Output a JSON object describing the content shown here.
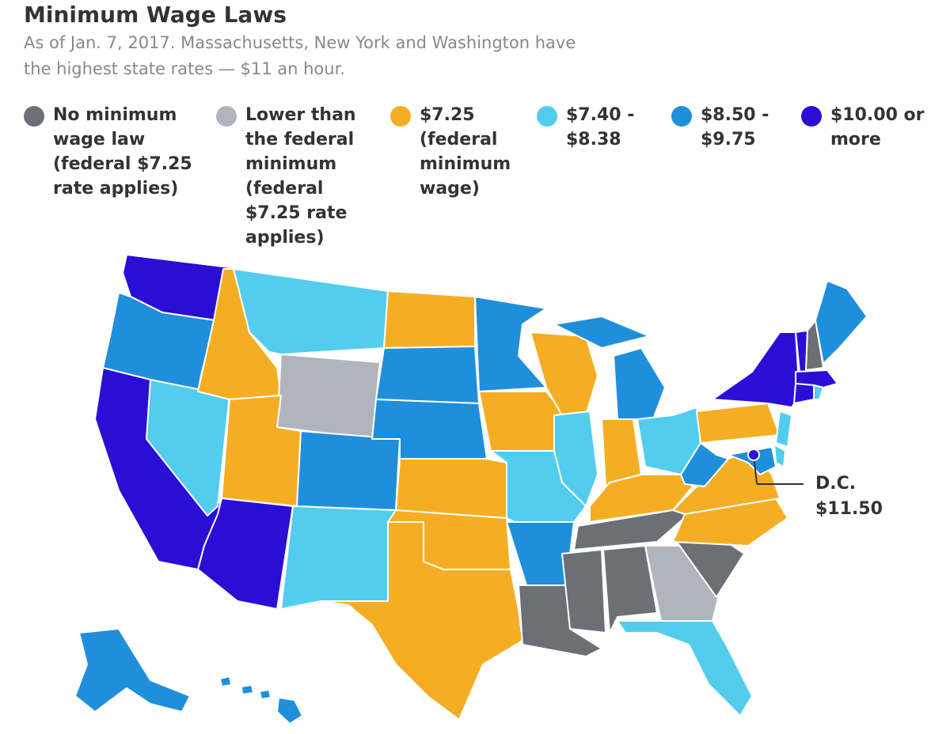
{
  "header": {
    "title": "Minimum Wage Laws",
    "subtitle": [
      "As of Jan. 7, 2017. Massachusetts, New York and Washington have",
      "the highest state rates — $11 an hour."
    ]
  },
  "legend": {
    "items": [
      {
        "color": "#6c6f76",
        "label": "No minimum wage law (federal $7.25 rate applies)"
      },
      {
        "color": "#afb4bd",
        "label": "Lower than the federal minimum (federal $7.25 rate applies)"
      },
      {
        "color": "#f5ae24",
        "label": "$7.25 (federal minimum wage)"
      },
      {
        "color": "#52cdee",
        "label": "$7.40 - $8.38"
      },
      {
        "color": "#1f8fdc",
        "label": "$8.50 - $9.75"
      },
      {
        "color": "#2a0ed6",
        "label": "$10.00 or more"
      }
    ]
  },
  "annotation": {
    "label": "D.C.",
    "value": "$11.50"
  }
}
